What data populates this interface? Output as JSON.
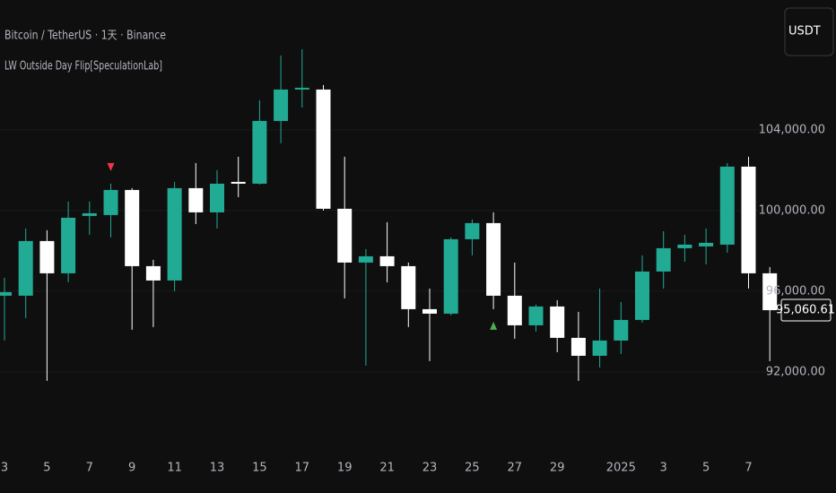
{
  "chart_data": {
    "type": "candlestick",
    "title": "Bitcoin / TetherUS · 1天 · Binance",
    "subtitle": "LW Outside Day Flip[SpeculationLab]",
    "currency_button": "USDT",
    "categories": [
      "3",
      null,
      "5",
      null,
      "7",
      null,
      "9",
      null,
      "11",
      null,
      "13",
      null,
      "15",
      null,
      "17",
      null,
      "19",
      null,
      "21",
      null,
      "23",
      null,
      "25",
      null,
      "27",
      null,
      "29",
      null,
      null,
      "2025",
      null,
      "3",
      null,
      "5",
      null,
      "7",
      null
    ],
    "open": [
      95778,
      95778,
      98489,
      96889,
      99733,
      99778,
      101022,
      97244,
      96533,
      101111,
      99911,
      101422,
      101333,
      104444,
      106000,
      106000,
      100089,
      97422,
      97733,
      97244,
      95111,
      94889,
      98578,
      99378,
      95778,
      94311,
      95244,
      93689,
      92800,
      93556,
      94578,
      96978,
      98133,
      98222,
      98311,
      102178,
      96889
    ],
    "high": [
      96667,
      99111,
      99022,
      100444,
      100444,
      101333,
      101111,
      97556,
      101422,
      102356,
      102000,
      102667,
      105467,
      107689,
      108000,
      106222,
      102667,
      98089,
      99422,
      97422,
      96133,
      98667,
      99556,
      99911,
      97422,
      95333,
      95556,
      94978,
      96133,
      95467,
      97778,
      98978,
      98800,
      99111,
      102356,
      102667,
      97200
    ],
    "low": [
      93556,
      94667,
      91556,
      96444,
      98800,
      98667,
      94089,
      94222,
      96000,
      99333,
      99111,
      100667,
      101289,
      103333,
      105111,
      100000,
      95644,
      92311,
      96444,
      94222,
      92533,
      94800,
      97778,
      95111,
      93644,
      94000,
      92978,
      91556,
      92222,
      92889,
      94444,
      96133,
      97467,
      97333,
      97911,
      96133,
      92533
    ],
    "close": [
      95956,
      98489,
      96889,
      99644,
      99867,
      101022,
      97244,
      96533,
      101111,
      99911,
      101333,
      101333,
      104444,
      106000,
      106089,
      100089,
      97422,
      97733,
      97244,
      95111,
      94889,
      98578,
      99378,
      95778,
      94311,
      95244,
      93689,
      92800,
      93556,
      94578,
      96978,
      98133,
      98311,
      98400,
      102178,
      96889,
      95060.61
    ],
    "up_color": "#22ab94",
    "down_color": "#ffffff",
    "markers": [
      {
        "index": 5,
        "direction": "down",
        "color": "#f23645"
      },
      {
        "index": 23,
        "direction": "up",
        "color": "#4caf50"
      }
    ],
    "last_price": {
      "value": 95060.61,
      "label": "95,060.61"
    },
    "ylim": [
      87330,
      110440
    ],
    "yticks": [
      {
        "value": 92000,
        "label": "92,000.00"
      },
      {
        "value": 96000,
        "label": "96,000.00"
      },
      {
        "value": 100000,
        "label": "100,000.00"
      },
      {
        "value": 104000,
        "label": "104,000.00"
      }
    ],
    "grid": true
  }
}
